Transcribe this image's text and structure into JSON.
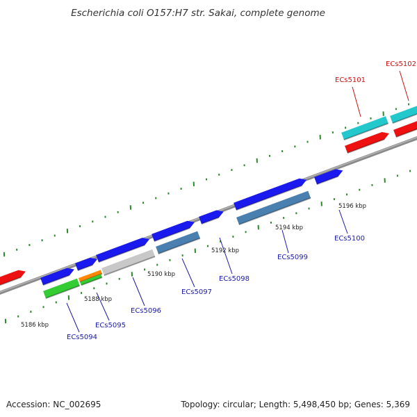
{
  "title": "Escherichia coli O157:H7 str. Sakai, complete genome",
  "footer": {
    "accession": "Accession: NC_002695",
    "summary": "Topology: circular; Length: 5,498,450 bp; Genes: 5,369"
  },
  "colors": {
    "backbone": "#8a8a8a",
    "tick": "#2a8a2a",
    "forward_cds": "#1a1aee",
    "reverse_cds": "#ee1111",
    "label_forward": "#1a1aaa",
    "label_reverse": "#cc1111",
    "cyan": "#22c8cc",
    "steel": "#4a80b0",
    "grey": "#c8c8c8",
    "green": "#33cc33",
    "orange": "#ff8800"
  },
  "kbp_labels": [
    "5186 kbp",
    "5188 kbp",
    "5190 kbp",
    "5192 kbp",
    "5194 kbp",
    "5196 kbp"
  ],
  "gene_labels": [
    {
      "name": "ECs5094",
      "strand": "forward"
    },
    {
      "name": "ECs5095",
      "strand": "forward"
    },
    {
      "name": "ECs5096",
      "strand": "forward"
    },
    {
      "name": "ECs5097",
      "strand": "forward"
    },
    {
      "name": "ECs5098",
      "strand": "forward"
    },
    {
      "name": "ECs5099",
      "strand": "forward"
    },
    {
      "name": "ECs5100",
      "strand": "forward"
    },
    {
      "name": "ECs5101",
      "strand": "reverse"
    },
    {
      "name": "ECs5102",
      "strand": "reverse"
    }
  ]
}
